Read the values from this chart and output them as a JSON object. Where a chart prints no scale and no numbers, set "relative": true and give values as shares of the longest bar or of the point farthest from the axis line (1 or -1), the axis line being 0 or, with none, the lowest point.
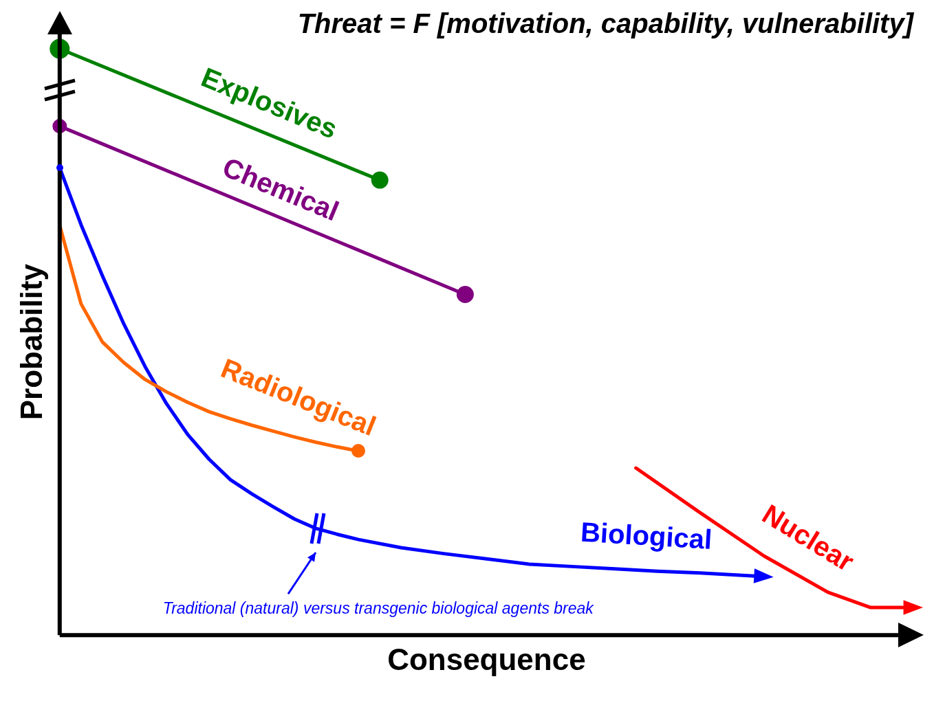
{
  "chart_data": {
    "type": "line",
    "relative": true,
    "title": "Threat = F [motivation, capability, vulnerability]",
    "xlabel": "Consequence",
    "ylabel": "Probability",
    "legend": false,
    "grid": false,
    "categories": [
      null,
      null,
      null,
      null,
      null,
      null,
      null,
      null,
      null,
      null,
      null,
      null,
      null,
      null,
      null,
      null,
      null,
      null,
      null,
      null,
      null,
      null,
      null,
      null,
      null,
      null,
      null,
      null,
      null,
      null,
      null,
      null,
      null,
      null,
      null,
      null,
      null,
      null,
      null,
      null,
      null
    ],
    "series": [
      {
        "name": "Explosives",
        "color": "#008000",
        "marker": "circle",
        "values": [
          1.0,
          null,
          null,
          null,
          null,
          null,
          null,
          null,
          null,
          null,
          null,
          null,
          null,
          null,
          null,
          0.776,
          null,
          null,
          null,
          null,
          null,
          null,
          null,
          null,
          null,
          null,
          null,
          null,
          null,
          null,
          null,
          null,
          null,
          null,
          null,
          null,
          null,
          null,
          null,
          null,
          null
        ]
      },
      {
        "name": "Chemical",
        "color": "#800080",
        "marker": "circle",
        "values": [
          0.868,
          null,
          null,
          null,
          null,
          null,
          null,
          null,
          null,
          null,
          null,
          null,
          null,
          null,
          null,
          null,
          null,
          null,
          null,
          0.581,
          null,
          null,
          null,
          null,
          null,
          null,
          null,
          null,
          null,
          null,
          null,
          null,
          null,
          null,
          null,
          null,
          null,
          null,
          null,
          null,
          null
        ]
      },
      {
        "name": "Radiological",
        "color": "#ff6600",
        "marker": "none",
        "values": [
          0.699,
          0.565,
          0.5,
          0.465,
          0.436,
          0.415,
          0.397,
          0.381,
          0.369,
          0.358,
          0.348,
          0.338,
          0.329,
          0.321,
          0.314,
          null,
          null,
          null,
          null,
          null,
          null,
          null,
          null,
          null,
          null,
          null,
          null,
          null,
          null,
          null,
          null,
          null,
          null,
          null,
          null,
          null,
          null,
          null,
          null,
          null,
          null
        ]
      },
      {
        "name": "Biological",
        "color": "#0000ff",
        "marker": "none",
        "values": [
          0.797,
          0.7,
          0.613,
          0.531,
          0.458,
          0.395,
          0.342,
          0.3,
          0.265,
          0.241,
          0.219,
          0.198,
          0.182,
          0.172,
          0.163,
          null,
          0.149,
          null,
          0.139,
          null,
          0.13,
          null,
          0.121,
          null,
          0.117,
          null,
          0.113,
          null,
          0.109,
          null,
          0.106,
          null,
          null,
          0.1,
          null,
          null,
          null,
          null,
          null,
          null,
          null
        ]
      },
      {
        "name": "Nuclear",
        "color": "#ff0000",
        "marker": "none",
        "values": [
          null,
          null,
          null,
          null,
          null,
          null,
          null,
          null,
          null,
          null,
          null,
          null,
          null,
          null,
          null,
          null,
          null,
          null,
          null,
          null,
          null,
          null,
          null,
          null,
          null,
          null,
          null,
          0.285,
          null,
          null,
          0.209,
          null,
          null,
          0.135,
          null,
          null,
          0.073,
          null,
          0.047,
          null,
          0.047
        ]
      }
    ],
    "annotations": [
      "Traditional (natural) versus transgenic biological agents break"
    ]
  }
}
